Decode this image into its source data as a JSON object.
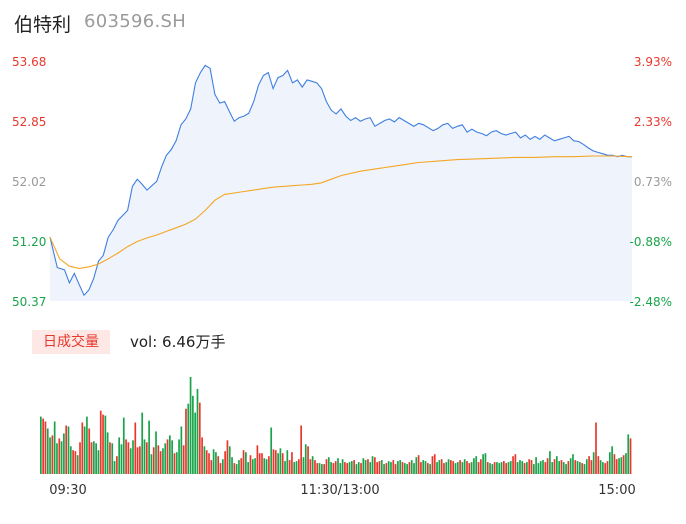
{
  "header": {
    "name": "伯特利",
    "code": "603596.SH"
  },
  "volume_panel": {
    "badge": "日成交量",
    "label": "vol: 6.46万手"
  },
  "colors": {
    "price_line": "#3f7fe0",
    "price_fill": "#eef3fc",
    "avg_line": "#f5a623",
    "up": "#e8382c",
    "down": "#1aa34a",
    "neutral": "#999999"
  },
  "chart_data": [
    {
      "type": "line",
      "title": "伯特利 603596.SH",
      "y_ticks_left": [
        "53.68",
        "52.85",
        "52.02",
        "51.20",
        "50.37"
      ],
      "y_ticks_right": [
        "3.93%",
        "2.33%",
        "0.73%",
        "-0.88%",
        "-2.48%"
      ],
      "x_ticks": [
        "09:30",
        "11:30/13:00",
        "15:00"
      ],
      "ylim": [
        50.37,
        53.68
      ],
      "x_range": [
        0,
        240
      ],
      "series": [
        {
          "role": "price",
          "x": [
            0,
            3,
            6,
            8,
            10,
            12,
            14,
            16,
            18,
            20,
            22,
            24,
            26,
            28,
            30,
            32,
            34,
            36,
            38,
            40,
            42,
            44,
            46,
            48,
            50,
            52,
            54,
            56,
            58,
            60,
            62,
            64,
            66,
            68,
            70,
            72,
            74,
            76,
            78,
            80,
            82,
            84,
            86,
            88,
            90,
            92,
            94,
            96,
            98,
            100,
            102,
            104,
            106,
            108,
            110,
            112,
            114,
            116,
            118,
            120,
            122,
            124,
            126,
            128,
            130,
            132,
            134,
            136,
            138,
            140,
            142,
            144,
            146,
            148,
            150,
            152,
            154,
            156,
            158,
            160,
            162,
            164,
            166,
            168,
            170,
            172,
            174,
            176,
            178,
            180,
            182,
            184,
            186,
            188,
            190,
            192,
            194,
            196,
            198,
            200,
            202,
            204,
            206,
            208,
            210,
            212,
            214,
            216,
            218,
            220,
            222,
            224,
            226,
            228,
            230,
            232,
            234,
            236,
            238,
            240
          ],
          "y": [
            51.25,
            50.83,
            50.8,
            50.62,
            50.75,
            50.6,
            50.45,
            50.52,
            50.68,
            50.92,
            51.0,
            51.25,
            51.35,
            51.48,
            51.55,
            51.62,
            51.95,
            52.05,
            51.98,
            51.9,
            51.96,
            52.02,
            52.22,
            52.38,
            52.46,
            52.58,
            52.8,
            52.88,
            53.02,
            53.38,
            53.52,
            53.62,
            53.58,
            53.22,
            53.1,
            53.12,
            52.98,
            52.85,
            52.9,
            52.92,
            52.96,
            53.12,
            53.35,
            53.48,
            53.52,
            53.3,
            53.45,
            53.48,
            53.55,
            53.38,
            53.42,
            53.32,
            53.42,
            53.4,
            53.38,
            53.3,
            53.12,
            53.0,
            52.95,
            53.02,
            52.92,
            52.86,
            52.9,
            52.85,
            52.88,
            52.9,
            52.78,
            52.82,
            52.86,
            52.88,
            52.84,
            52.9,
            52.86,
            52.82,
            52.78,
            52.82,
            52.8,
            52.76,
            52.72,
            52.75,
            52.8,
            52.82,
            52.75,
            52.78,
            52.8,
            52.7,
            52.74,
            52.7,
            52.68,
            52.65,
            52.7,
            52.72,
            52.68,
            52.66,
            52.68,
            52.7,
            52.62,
            52.66,
            52.6,
            52.64,
            52.6,
            52.66,
            52.62,
            52.58,
            52.6,
            52.62,
            52.64,
            52.58,
            52.57,
            52.53,
            52.48,
            52.44,
            52.42,
            52.4,
            52.38,
            52.38,
            52.36,
            52.38,
            52.36,
            52.36
          ]
        },
        {
          "role": "average",
          "x": [
            0,
            4,
            8,
            12,
            16,
            20,
            24,
            28,
            32,
            36,
            40,
            44,
            48,
            52,
            56,
            60,
            64,
            68,
            72,
            76,
            80,
            84,
            88,
            92,
            96,
            100,
            104,
            108,
            112,
            116,
            120,
            128,
            136,
            144,
            152,
            160,
            168,
            176,
            184,
            192,
            200,
            208,
            216,
            224,
            232,
            240
          ],
          "y": [
            51.25,
            50.95,
            50.85,
            50.82,
            50.84,
            50.88,
            50.95,
            51.03,
            51.12,
            51.19,
            51.24,
            51.28,
            51.33,
            51.38,
            51.43,
            51.5,
            51.62,
            51.76,
            51.84,
            51.86,
            51.88,
            51.9,
            51.92,
            51.94,
            51.95,
            51.96,
            51.97,
            51.98,
            52.0,
            52.05,
            52.1,
            52.16,
            52.2,
            52.24,
            52.28,
            52.3,
            52.32,
            52.33,
            52.34,
            52.35,
            52.35,
            52.36,
            52.36,
            52.37,
            52.37,
            52.36
          ]
        }
      ]
    },
    {
      "type": "bar",
      "title": "日成交量",
      "values": [
        58,
        56,
        53,
        46,
        37,
        39,
        53,
        31,
        36,
        33,
        41,
        49,
        48,
        28,
        24,
        23,
        19,
        32,
        52,
        48,
        58,
        46,
        32,
        33,
        31,
        24,
        64,
        60,
        59,
        42,
        32,
        31,
        13,
        18,
        37,
        30,
        57,
        35,
        32,
        26,
        34,
        52,
        27,
        28,
        62,
        35,
        32,
        54,
        20,
        27,
        43,
        29,
        23,
        26,
        31,
        35,
        39,
        34,
        21,
        22,
        35,
        48,
        29,
        66,
        71,
        98,
        79,
        62,
        86,
        72,
        37,
        28,
        24,
        21,
        14,
        25,
        22,
        18,
        11,
        15,
        23,
        34,
        28,
        17,
        11,
        10,
        14,
        16,
        24,
        22,
        12,
        19,
        15,
        16,
        29,
        21,
        21,
        16,
        15,
        18,
        47,
        25,
        24,
        21,
        26,
        21,
        13,
        24,
        14,
        22,
        12,
        13,
        15,
        49,
        17,
        30,
        28,
        15,
        18,
        14,
        11,
        11,
        10,
        10,
        15,
        17,
        12,
        11,
        13,
        16,
        11,
        15,
        12,
        11,
        12,
        13,
        14,
        10,
        12,
        11,
        16,
        14,
        15,
        12,
        18,
        17,
        12,
        13,
        14,
        10,
        11,
        13,
        12,
        14,
        10,
        13,
        14,
        12,
        11,
        10,
        12,
        14,
        11,
        17,
        19,
        12,
        14,
        13,
        11,
        10,
        18,
        20,
        12,
        14,
        15,
        11,
        12,
        15,
        14,
        13,
        11,
        12,
        14,
        12,
        15,
        13,
        11,
        12,
        16,
        18,
        12,
        15,
        20,
        21,
        12,
        11,
        10,
        12,
        12,
        11,
        12,
        13,
        11,
        12,
        13,
        18,
        20,
        12,
        14,
        13,
        11,
        12,
        15,
        14,
        10,
        17,
        11,
        13,
        14,
        12,
        16,
        23,
        12,
        15,
        18,
        13,
        14,
        12,
        10,
        13,
        16,
        20,
        14,
        13,
        12,
        11,
        10,
        15,
        18,
        14,
        22,
        52,
        18,
        14,
        12,
        11,
        13,
        22,
        28,
        20,
        15,
        16,
        17,
        19,
        21,
        40,
        36
      ],
      "directions": "duuddudduddudduuduudduuddduuddudduddduudduuuddudduduuddudduddduuddddduuduuudduuduuddudduuddudduuudduduuddudduudduudduuduudduudduuddduuddudduddudduuuddudduuddudduddduudduduudduudduuddudduuddduuddudduddduudduuddduduuddddduuddudduddudduddudduuduudduudduuddudduuddduddu"
    }
  ]
}
